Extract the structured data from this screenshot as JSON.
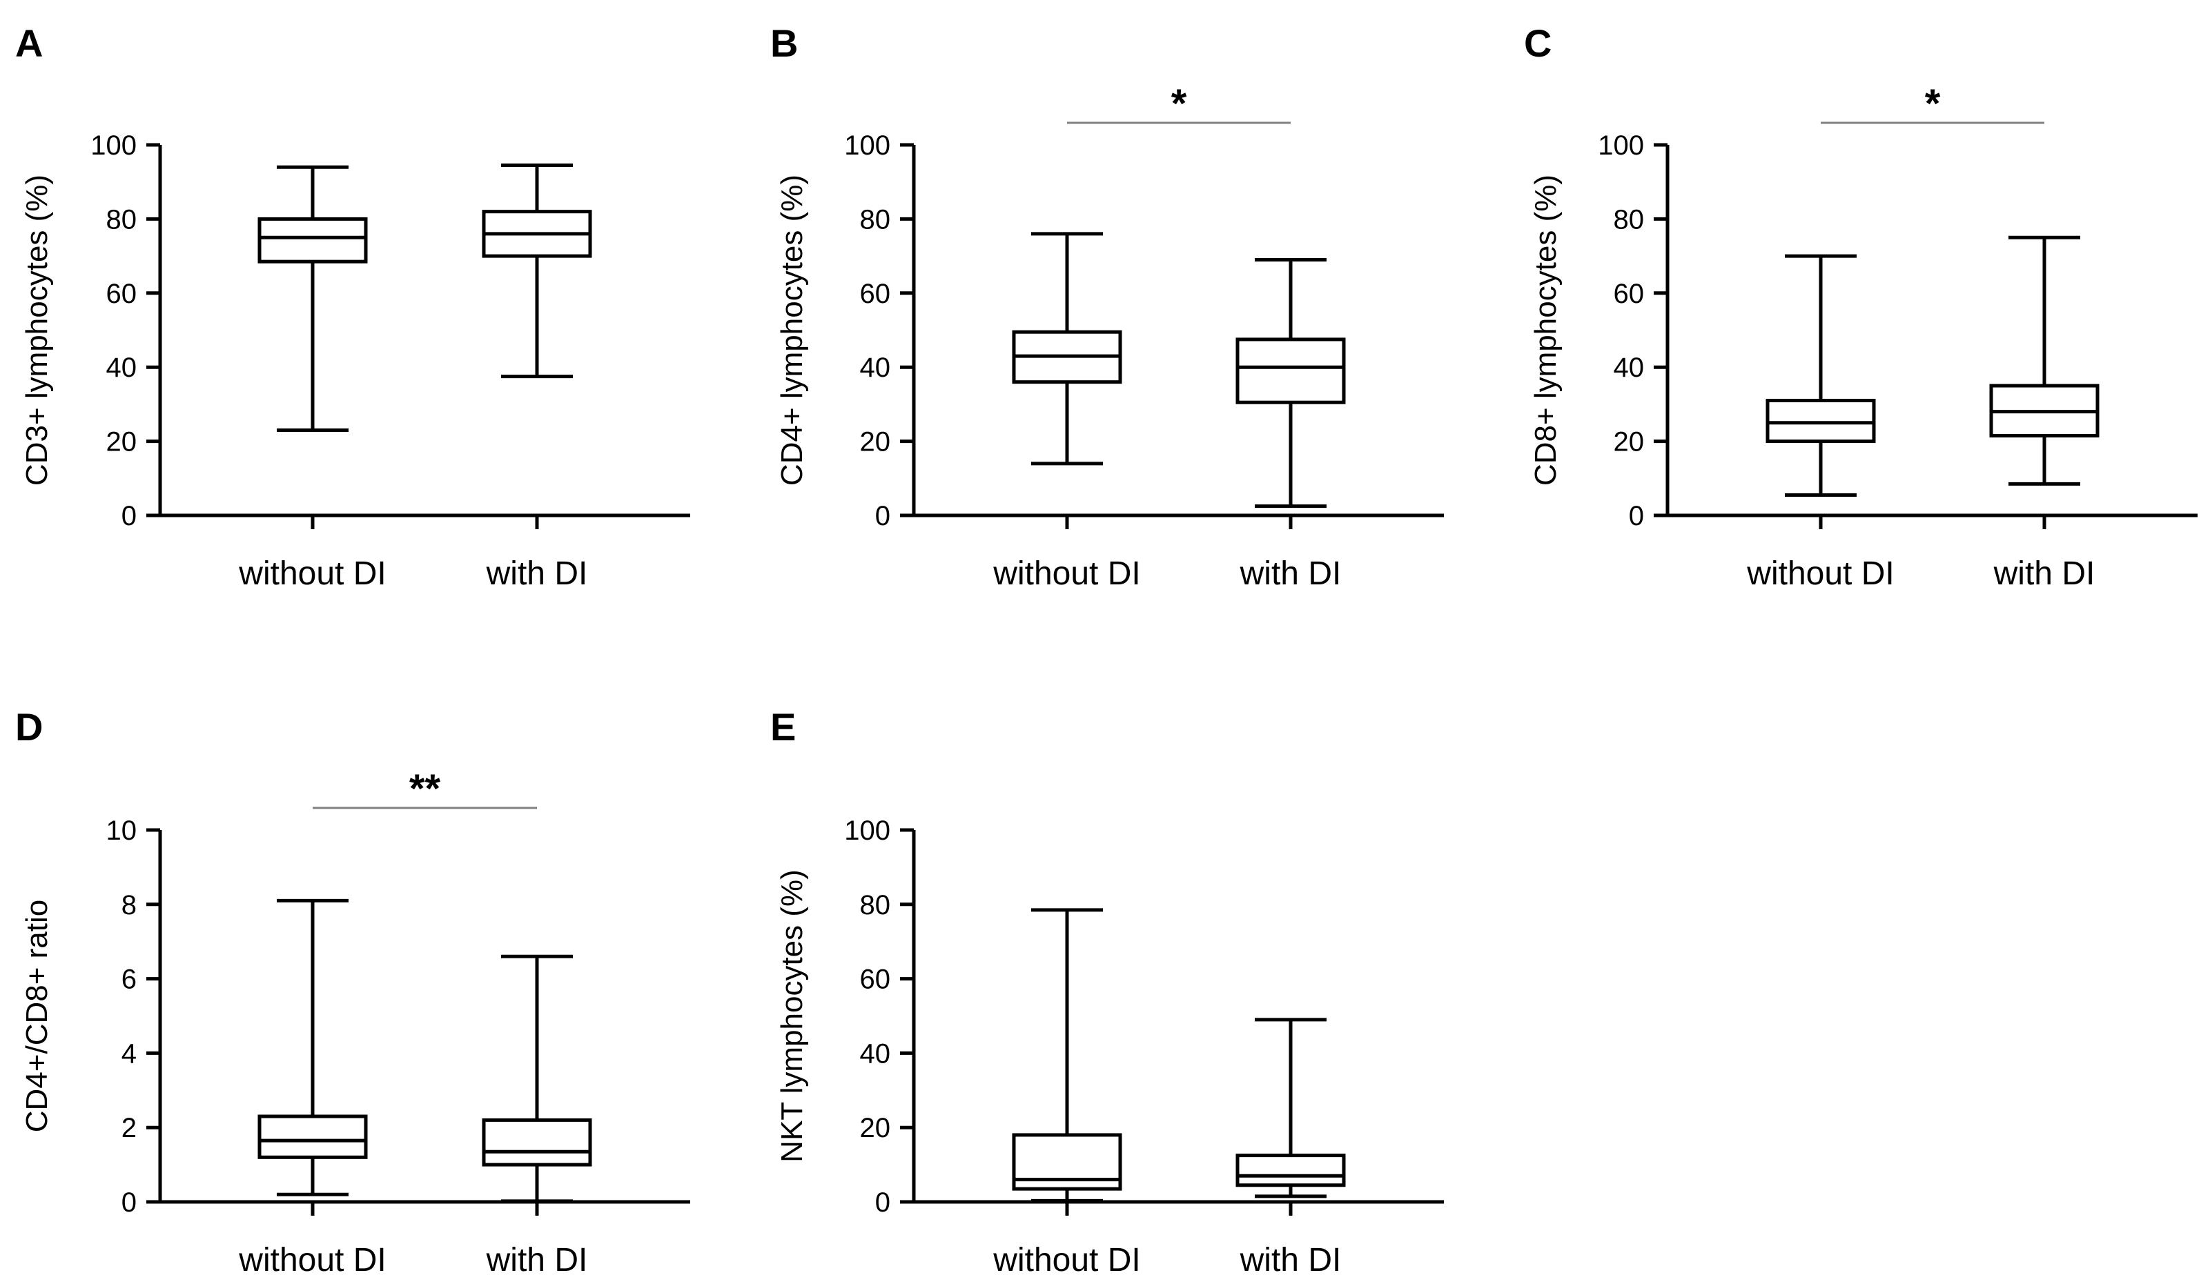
{
  "colors": {
    "stroke": "#000000",
    "significance_line": "#808080",
    "background": "#ffffff"
  },
  "chart_data": [
    {
      "type": "box",
      "panel": "A",
      "ylabel": "CD3+ lymphocytes (%)",
      "ylim": [
        0,
        100
      ],
      "yticks": [
        "0",
        "20",
        "40",
        "60",
        "80",
        "100"
      ],
      "categories": [
        "without DI",
        "with DI"
      ],
      "boxes": [
        {
          "min": 23,
          "q1": 68.5,
          "median": 75,
          "q3": 80,
          "max": 94
        },
        {
          "min": 37.5,
          "q1": 70,
          "median": 76,
          "q3": 82,
          "max": 94.5
        }
      ],
      "significance": ""
    },
    {
      "type": "box",
      "panel": "B",
      "ylabel": "CD4+ lymphocytes (%)",
      "ylim": [
        0,
        100
      ],
      "yticks": [
        "0",
        "20",
        "40",
        "60",
        "80",
        "100"
      ],
      "categories": [
        "without DI",
        "with DI"
      ],
      "boxes": [
        {
          "min": 14,
          "q1": 36,
          "median": 43,
          "q3": 49.5,
          "max": 76
        },
        {
          "min": 2.5,
          "q1": 30.5,
          "median": 40,
          "q3": 47.5,
          "max": 69
        }
      ],
      "significance": "*"
    },
    {
      "type": "box",
      "panel": "C",
      "ylabel": "CD8+ lymphocytes (%)",
      "ylim": [
        0,
        100
      ],
      "yticks": [
        "0",
        "20",
        "40",
        "60",
        "80",
        "100"
      ],
      "categories": [
        "without DI",
        "with DI"
      ],
      "boxes": [
        {
          "min": 5.5,
          "q1": 20,
          "median": 25,
          "q3": 31,
          "max": 70
        },
        {
          "min": 8.5,
          "q1": 21.5,
          "median": 28,
          "q3": 35,
          "max": 75
        }
      ],
      "significance": "*"
    },
    {
      "type": "box",
      "panel": "D",
      "ylabel": "CD4+/CD8+ ratio",
      "ylim": [
        0,
        10
      ],
      "yticks": [
        "0",
        "2",
        "4",
        "6",
        "8",
        "10"
      ],
      "categories": [
        "without DI",
        "with DI"
      ],
      "boxes": [
        {
          "min": 0.2,
          "q1": 1.2,
          "median": 1.65,
          "q3": 2.3,
          "max": 8.1
        },
        {
          "min": 0.02,
          "q1": 1.0,
          "median": 1.35,
          "q3": 2.2,
          "max": 6.6
        }
      ],
      "significance": "**"
    },
    {
      "type": "box",
      "panel": "E",
      "ylabel": "NKT lymphocytes (%)",
      "ylim": [
        0,
        100
      ],
      "yticks": [
        "0",
        "20",
        "40",
        "60",
        "80",
        "100"
      ],
      "categories": [
        "without DI",
        "with DI"
      ],
      "boxes": [
        {
          "min": 0.3,
          "q1": 3.5,
          "median": 6,
          "q3": 18,
          "max": 78.5
        },
        {
          "min": 1.5,
          "q1": 4.5,
          "median": 7,
          "q3": 12.5,
          "max": 49
        }
      ],
      "significance": ""
    }
  ]
}
